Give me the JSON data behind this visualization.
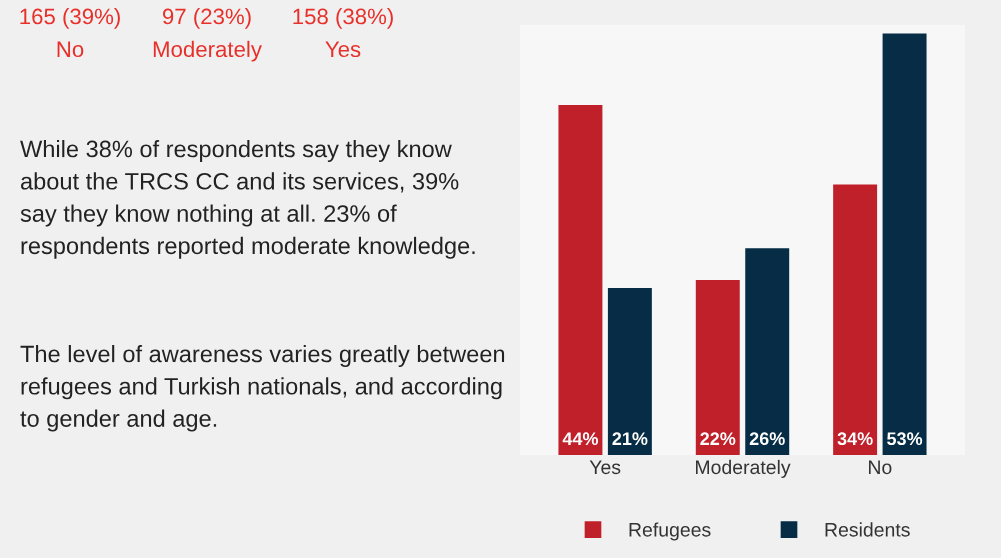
{
  "chart_data": {
    "type": "bar",
    "categories": [
      "Yes",
      "Moderately",
      "No"
    ],
    "series": [
      {
        "name": "Refugees",
        "color": "#c0202a",
        "values": [
          44,
          22,
          34
        ],
        "value_labels": [
          "44%",
          "22%",
          "34%"
        ]
      },
      {
        "name": "Residents",
        "color": "#062d45",
        "values": [
          21,
          26,
          53
        ],
        "value_labels": [
          "21%",
          "26%",
          "53%"
        ]
      }
    ],
    "annotations": [
      "165 (39%)\nNo",
      "97 (23%)\nModerately",
      "158 (38%)\nYes",
      "While 38% of respondents say they know\nabout the TRCS CC and its services, 39%\nsay they know nothing at all. 23% of\nrespondents reported moderate knowledge.",
      "The level of awareness varies greatly between\nrefugees and Turkish nationals, and according\nto gender and age."
    ],
    "legend": "bottom",
    "grid": false,
    "tick_labels": "x"
  }
}
